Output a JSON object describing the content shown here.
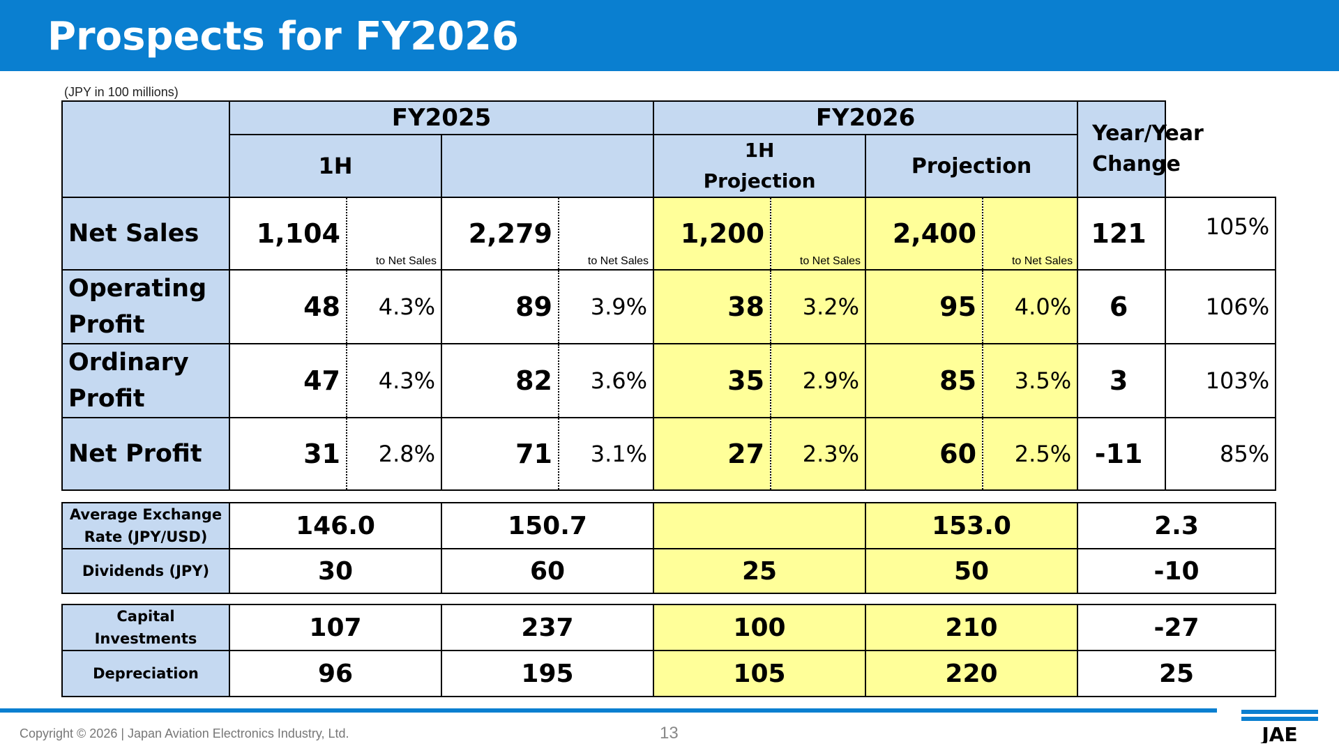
{
  "page": {
    "title": "Prospects for FY2026",
    "unit_note": "(JPY in 100 millions)",
    "copyright": "Copyright © 2026 | Japan Aviation Electronics Industry, Ltd.",
    "page_number": "13",
    "logo_text": "JAE"
  },
  "header": {
    "fy2025": "FY2025",
    "fy2026": "FY2026",
    "yoy": "Year/Year Change",
    "h1": "1H",
    "h1_projection": "1H Projection",
    "projection": "Projection",
    "to_net_sales": "to Net Sales"
  },
  "rows": [
    {
      "label": "Net Sales",
      "fy25_1h": "1,104",
      "fy25_1h_pct": "",
      "fy25_full": "2,279",
      "fy25_full_pct": "",
      "fy26_1h": "1,200",
      "fy26_1h_pct": "",
      "fy26_full": "2,400",
      "fy26_full_pct": "",
      "yoy_abs": "121",
      "yoy_pct": "105%"
    },
    {
      "label": "Operating Profit",
      "fy25_1h": "48",
      "fy25_1h_pct": "4.3%",
      "fy25_full": "89",
      "fy25_full_pct": "3.9%",
      "fy26_1h": "38",
      "fy26_1h_pct": "3.2%",
      "fy26_full": "95",
      "fy26_full_pct": "4.0%",
      "yoy_abs": "6",
      "yoy_pct": "106%"
    },
    {
      "label": "Ordinary Profit",
      "fy25_1h": "47",
      "fy25_1h_pct": "4.3%",
      "fy25_full": "82",
      "fy25_full_pct": "3.6%",
      "fy26_1h": "35",
      "fy26_1h_pct": "2.9%",
      "fy26_full": "85",
      "fy26_full_pct": "3.5%",
      "yoy_abs": "3",
      "yoy_pct": "103%"
    },
    {
      "label": "Net Profit",
      "fy25_1h": "31",
      "fy25_1h_pct": "2.8%",
      "fy25_full": "71",
      "fy25_full_pct": "3.1%",
      "fy26_1h": "27",
      "fy26_1h_pct": "2.3%",
      "fy26_full": "60",
      "fy26_full_pct": "2.5%",
      "yoy_abs": "-11",
      "yoy_pct": "85%"
    }
  ],
  "fx_div": [
    {
      "label": "Average Exchange Rate (JPY/USD)",
      "fy25_1h": "146.0",
      "fy25_full": "150.7",
      "fy26_1h": "",
      "fy26_full": "153.0",
      "yoy": "2.3"
    },
    {
      "label": "Dividends (JPY)",
      "fy25_1h": "30",
      "fy25_full": "60",
      "fy26_1h": "25",
      "fy26_full": "50",
      "yoy": "-10"
    }
  ],
  "capex": [
    {
      "label": "Capital Investments",
      "fy25_1h": "107",
      "fy25_full": "237",
      "fy26_1h": "100",
      "fy26_full": "210",
      "yoy": "-27"
    },
    {
      "label": "Depreciation",
      "fy25_1h": "96",
      "fy25_full": "195",
      "fy26_1h": "105",
      "fy26_full": "220",
      "yoy": "25"
    }
  ],
  "colors": {
    "brand_blue": "#0a7fd0",
    "header_fill": "#c5d9f1",
    "projection_fill": "#ffff99"
  }
}
